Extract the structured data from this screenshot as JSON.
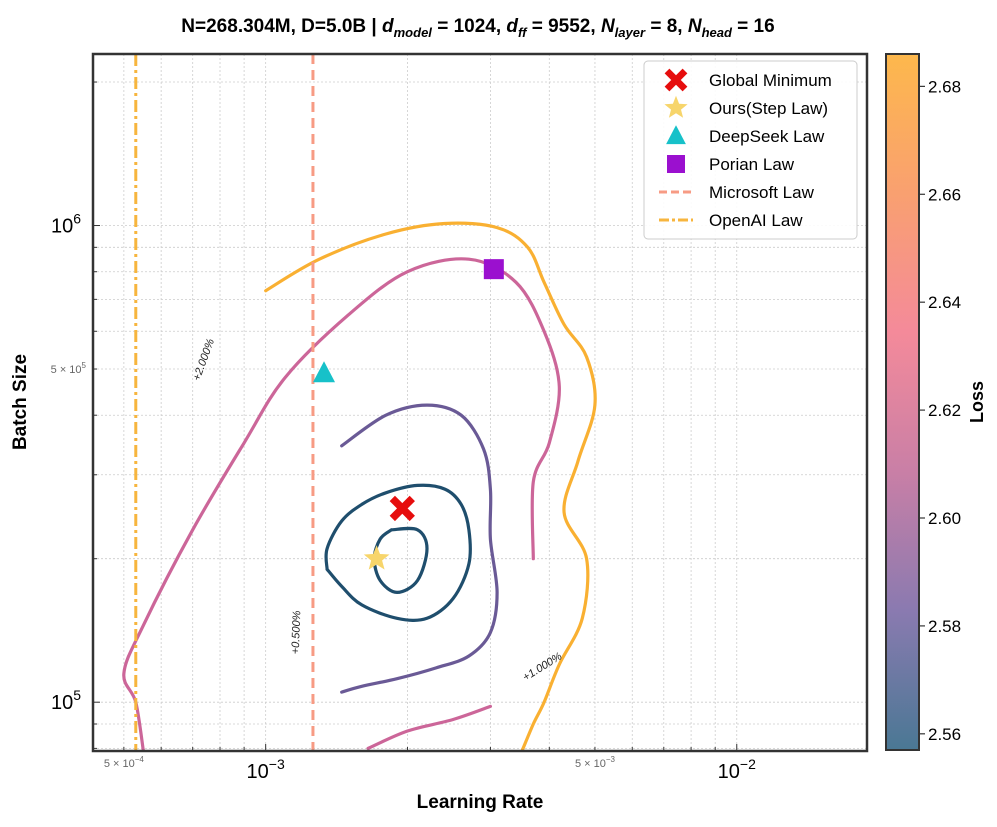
{
  "chart_data": {
    "type": "contour",
    "title_parts": {
      "prefix": "N=268.304M, D=5.0B | ",
      "d": "d",
      "d_model_sub": "model",
      "d_model_val": " = 1024, ",
      "dff_sub": "ff",
      "dff_val": " = 9552, ",
      "N": "N",
      "layer_sub": "layer",
      "layer_val": " = 8, ",
      "head_sub": "head",
      "head_val": " = 16"
    },
    "xlabel": "Learning Rate",
    "ylabel": "Batch Size",
    "xscale": "log",
    "yscale": "log",
    "xlim": [
      0.00043,
      0.0189
    ],
    "ylim": [
      79000,
      2290000
    ],
    "grid": true,
    "x_major_ticks": [
      {
        "value": 0.001,
        "label_base": "10",
        "label_exp": "−3"
      },
      {
        "value": 0.01,
        "label_base": "10",
        "label_exp": "−2"
      }
    ],
    "x_minor_labels": [
      {
        "value": 0.0005,
        "label_mant": "5 × 10",
        "label_exp": "−4"
      },
      {
        "value": 0.005,
        "label_mant": "5 × 10",
        "label_exp": "−3"
      }
    ],
    "y_major_ticks": [
      {
        "value": 100000,
        "label_base": "10",
        "label_exp": "5"
      },
      {
        "value": 1000000,
        "label_base": "10",
        "label_exp": "6"
      }
    ],
    "y_minor_labels": [
      {
        "value": 500000,
        "label_mant": "5 × 10",
        "label_exp": "5"
      }
    ],
    "contours": [
      {
        "level": "+0.500%",
        "color": "#1f4e6d",
        "paths": [
          [
            [
              0.00135,
              190000
            ],
            [
              0.00135,
              210000
            ],
            [
              0.00145,
              240000
            ],
            [
              0.0016,
              260000
            ],
            [
              0.0018,
              275000
            ],
            [
              0.0021,
              285000
            ],
            [
              0.0024,
              280000
            ],
            [
              0.0026,
              260000
            ],
            [
              0.0027,
              230000
            ],
            [
              0.0027,
              195000
            ],
            [
              0.0025,
              165000
            ],
            [
              0.0022,
              150000
            ],
            [
              0.0019,
              150000
            ],
            [
              0.0016,
              160000
            ],
            [
              0.00145,
              175000
            ],
            [
              0.00135,
              190000
            ]
          ],
          [
            [
              0.00185,
              230000
            ],
            [
              0.0021,
              230000
            ],
            [
              0.0022,
              210000
            ],
            [
              0.0021,
              180000
            ],
            [
              0.0019,
              170000
            ],
            [
              0.00175,
              180000
            ],
            [
              0.0017,
              200000
            ],
            [
              0.00175,
              220000
            ],
            [
              0.00185,
              230000
            ]
          ]
        ]
      },
      {
        "level": "+1.000%",
        "color": "#6a5a96",
        "paths": [
          [
            [
              0.00145,
              345000
            ],
            [
              0.0018,
              400000
            ],
            [
              0.0022,
              420000
            ],
            [
              0.0026,
              400000
            ],
            [
              0.0029,
              340000
            ],
            [
              0.003,
              280000
            ],
            [
              0.003,
              220000
            ],
            [
              0.0031,
              170000
            ],
            [
              0.003,
              140000
            ],
            [
              0.0027,
              125000
            ],
            [
              0.0023,
              118000
            ],
            [
              0.0019,
              112000
            ],
            [
              0.0016,
              108000
            ],
            [
              0.00145,
              105000
            ]
          ]
        ]
      },
      {
        "level": "+2.000%",
        "color": "#cc6699",
        "paths": [
          [
            [
              0.00055,
              79000
            ],
            [
              0.00053,
              100000
            ],
            [
              0.0005,
              115000
            ],
            [
              0.00055,
              145000
            ],
            [
              0.0007,
              230000
            ],
            [
              0.0009,
              350000
            ],
            [
              0.0011,
              480000
            ],
            [
              0.0015,
              650000
            ],
            [
              0.002,
              800000
            ],
            [
              0.0027,
              850000
            ],
            [
              0.0034,
              760000
            ],
            [
              0.0039,
              600000
            ],
            [
              0.0042,
              460000
            ],
            [
              0.004,
              350000
            ],
            [
              0.0037,
              290000
            ],
            [
              0.0037,
              200000
            ]
          ],
          [
            [
              0.00165,
              80000
            ],
            [
              0.002,
              87000
            ],
            [
              0.0025,
              92000
            ],
            [
              0.003,
              98000
            ]
          ]
        ]
      },
      {
        "level": "",
        "color": "#f9b032",
        "paths": [
          [
            [
              0.001,
              730000
            ],
            [
              0.0013,
              850000
            ],
            [
              0.0018,
              960000
            ],
            [
              0.0024,
              1010000
            ],
            [
              0.0031,
              990000
            ],
            [
              0.0036,
              900000
            ],
            [
              0.0039,
              760000
            ],
            [
              0.0043,
              620000
            ],
            [
              0.0048,
              530000
            ],
            [
              0.005,
              420000
            ],
            [
              0.0046,
              320000
            ],
            [
              0.0043,
              250000
            ],
            [
              0.0048,
              200000
            ],
            [
              0.0047,
              150000
            ],
            [
              0.0042,
              120000
            ],
            [
              0.0039,
              100000
            ],
            [
              0.0037,
              90000
            ],
            [
              0.0035,
              79000
            ]
          ]
        ]
      }
    ],
    "contour_labels": [
      {
        "text": "+2.000%",
        "x": 0.00075,
        "y": 520000,
        "rotate": -70
      },
      {
        "text": "+0.500%",
        "x": 0.00118,
        "y": 140000,
        "rotate": -88
      },
      {
        "text": "+1.000%",
        "x": 0.0039,
        "y": 117000,
        "rotate": -32
      }
    ],
    "vertical_lines": [
      {
        "name": "Microsoft Law",
        "x": 0.00126,
        "color": "#f79b84",
        "dash": "10,6"
      },
      {
        "name": "OpenAI Law",
        "x": 0.00053,
        "color": "#f7b53e",
        "dash": "12,4,3,4"
      }
    ],
    "points": [
      {
        "name": "Global Minimum",
        "x": 0.00195,
        "y": 255000,
        "marker": "x",
        "color": "#e60d0d"
      },
      {
        "name": "Ours(Step Law)",
        "x": 0.00172,
        "y": 200000,
        "marker": "star",
        "color": "#f7d56b"
      },
      {
        "name": "DeepSeek Law",
        "x": 0.00133,
        "y": 490000,
        "marker": "triangle",
        "color": "#17c1c9"
      },
      {
        "name": "Porian Law",
        "x": 0.00305,
        "y": 810000,
        "marker": "square",
        "color": "#9b10cf"
      }
    ],
    "legend_location": "top-right",
    "legend": [
      {
        "label": "Global Minimum",
        "marker": "x",
        "color": "#e60d0d"
      },
      {
        "label": "Ours(Step Law)",
        "marker": "star",
        "color": "#f7d56b"
      },
      {
        "label": "DeepSeek Law",
        "marker": "triangle",
        "color": "#17c1c9"
      },
      {
        "label": "Porian Law",
        "marker": "square",
        "color": "#9b10cf"
      },
      {
        "label": "Microsoft Law",
        "marker": "dashed-line",
        "color": "#f79b84"
      },
      {
        "label": "OpenAI Law",
        "marker": "dashdot-line",
        "color": "#f7b53e"
      }
    ],
    "colorbar": {
      "label": "Loss",
      "range": [
        2.557,
        2.686
      ],
      "ticks": [
        "2.56",
        "2.58",
        "2.60",
        "2.62",
        "2.64",
        "2.66",
        "2.68"
      ],
      "colors": [
        "#4a7894",
        "#8a7ab0",
        "#c97fa6",
        "#f48a9a",
        "#f9a070",
        "#fdb84c"
      ]
    }
  }
}
